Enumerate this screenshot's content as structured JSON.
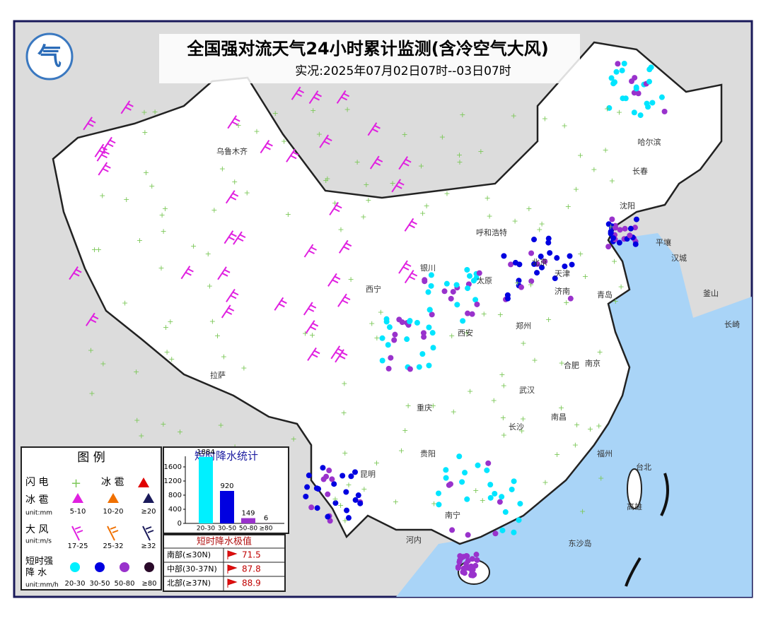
{
  "header": {
    "title": "全国强对流天气24小时累计监测(含冷空气大风)",
    "subtitle": "实况:2025年07月02日07时--03日07时"
  },
  "cities": [
    "乌鲁木齐",
    "哈尔滨",
    "长春",
    "沈阳",
    "平壤",
    "汉城",
    "釜山",
    "长崎",
    "呼和浩特",
    "北京",
    "天津",
    "济南",
    "青岛",
    "西宁",
    "银川",
    "太原",
    "郑州",
    "西安",
    "合肥",
    "南京",
    "武汉",
    "重庆",
    "拉萨",
    "长沙",
    "南昌",
    "贵阳",
    "昆明",
    "南宁",
    "福州",
    "台北",
    "高雄",
    "河内",
    "东沙岛"
  ],
  "legend": {
    "title": "图 例",
    "lightning": "闪 电",
    "hail_symbol": "冰 雹",
    "hail": {
      "label": "冰 雹",
      "unit": "unit:mm",
      "levels": [
        "5-10",
        "10-20",
        "≥20"
      ]
    },
    "wind": {
      "label": "大 风",
      "unit": "unit:m/s",
      "levels": [
        "17-25",
        "25-32",
        "≥32"
      ]
    },
    "rain": {
      "label": [
        "短时强",
        "降 水"
      ],
      "unit": "unit:mm/h",
      "levels": [
        "20-30",
        "30-50",
        "50-80",
        "≥80"
      ]
    }
  },
  "chart_data": {
    "type": "bar",
    "title": "短时降水统计",
    "categories": [
      "20-30",
      "30-50",
      "50-80",
      "≥80"
    ],
    "values": [
      1884,
      920,
      149,
      6
    ],
    "colors": [
      "#00f0ff",
      "#0000e0",
      "#9932cc",
      "#2a0a2a"
    ],
    "ylim": [
      0,
      1900
    ],
    "yticks": [
      0,
      400,
      800,
      1200,
      1600
    ]
  },
  "extremes": {
    "title": "短时降水极值",
    "rows": [
      [
        "南部(≤30N)",
        71.5
      ],
      [
        "中部(30-37N)",
        87.8
      ],
      [
        "北部(≥37N)",
        88.9
      ]
    ]
  }
}
